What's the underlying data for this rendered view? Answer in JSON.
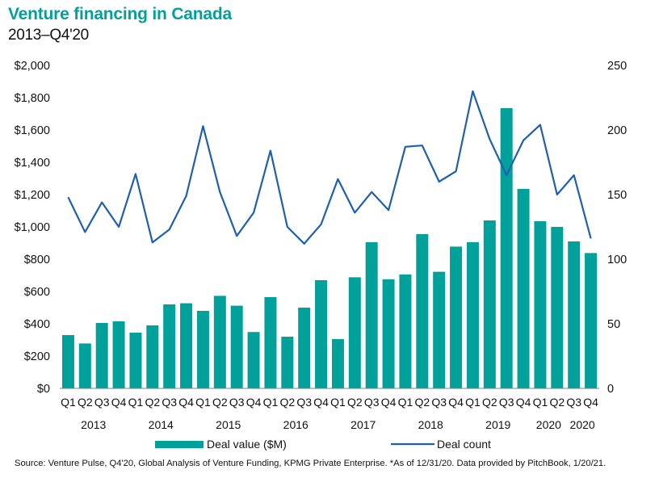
{
  "title": "Venture financing in Canada",
  "subtitle": "2013–Q4'20",
  "source": "Source: Venture Pulse, Q4'20, Global Analysis of Venture Funding, KPMG Private Enterprise. *As of 12/31/20. Data provided by PitchBook, 1/20/21.",
  "colors": {
    "bar": "#00a19a",
    "line": "#1f5fae",
    "title": "#00a19a"
  },
  "chart_data": {
    "type": "bar",
    "categories": [
      "Q1",
      "Q2",
      "Q3",
      "Q4",
      "Q1",
      "Q2",
      "Q3",
      "Q4",
      "Q1",
      "Q2",
      "Q3",
      "Q4",
      "Q1",
      "Q2",
      "Q3",
      "Q4",
      "Q1",
      "Q2",
      "Q3",
      "Q4",
      "Q1",
      "Q2",
      "Q3",
      "Q4",
      "Q1",
      "Q2",
      "Q3",
      "Q4",
      "Q1",
      "Q2",
      "Q3",
      "Q4"
    ],
    "year_groups": [
      {
        "label": "2013",
        "start": 0,
        "end": 3
      },
      {
        "label": "2014",
        "start": 4,
        "end": 7
      },
      {
        "label": "2015",
        "start": 8,
        "end": 11
      },
      {
        "label": "2016",
        "start": 12,
        "end": 15
      },
      {
        "label": "2017",
        "start": 16,
        "end": 19
      },
      {
        "label": "2018",
        "start": 20,
        "end": 23
      },
      {
        "label": "2019",
        "start": 24,
        "end": 27
      },
      {
        "label": "2020",
        "start": 28,
        "end": 29
      },
      {
        "label": "2020",
        "start": 30,
        "end": 31
      }
    ],
    "series": [
      {
        "name": "Deal value ($M)",
        "type": "bar",
        "axis": "left",
        "values": [
          330,
          278,
          405,
          415,
          345,
          390,
          520,
          527,
          480,
          573,
          512,
          349,
          565,
          320,
          500,
          670,
          305,
          688,
          905,
          675,
          705,
          955,
          722,
          878,
          905,
          1040,
          1735,
          1235,
          1035,
          1000,
          910,
          838
        ]
      },
      {
        "name": "Deal count",
        "type": "line",
        "axis": "right",
        "values": [
          148,
          121,
          144,
          125,
          166,
          113,
          123,
          149,
          203,
          152,
          118,
          136,
          184,
          125,
          112,
          127,
          162,
          136,
          152,
          138,
          187,
          188,
          160,
          168,
          230,
          193,
          165,
          192,
          204,
          150,
          165,
          116
        ]
      }
    ],
    "y_left": {
      "ticks": [
        "$0",
        "$200",
        "$400",
        "$600",
        "$800",
        "$1,000",
        "$1,200",
        "$1,400",
        "$1,600",
        "$1,800",
        "$2,000"
      ],
      "lim": [
        0,
        2000
      ]
    },
    "y_right": {
      "ticks": [
        "0",
        "50",
        "100",
        "150",
        "200",
        "250"
      ],
      "lim": [
        0,
        250
      ]
    },
    "grid": false,
    "legend_position": "bottom"
  }
}
